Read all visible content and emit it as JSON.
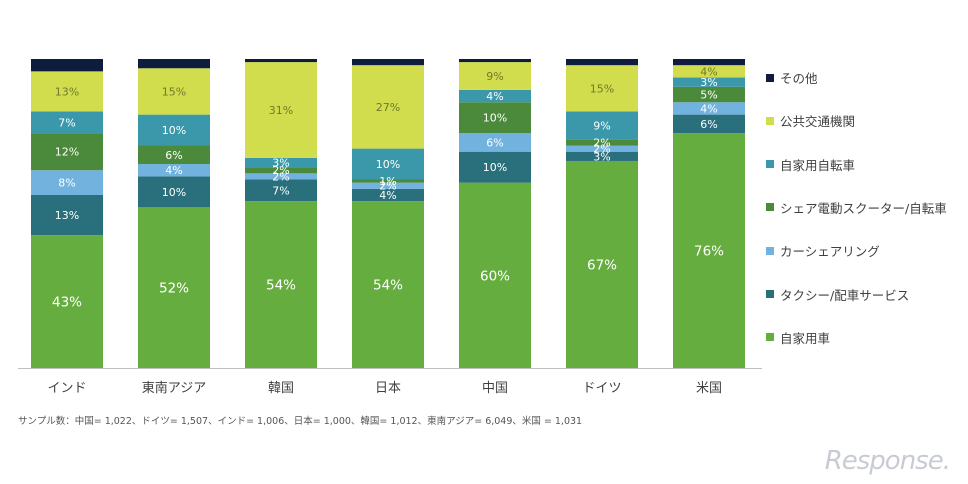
{
  "chart_data": {
    "type": "bar",
    "stacked": true,
    "title": "",
    "xlabel": "",
    "ylabel": "",
    "ylim": [
      0,
      100
    ],
    "grid": false,
    "legend_position": "right",
    "categories": [
      "インド",
      "東南アジア",
      "韓国",
      "日本",
      "中国",
      "ドイツ",
      "米国"
    ],
    "series": [
      {
        "name": "自家用車",
        "color": "#66ad3f",
        "values": [
          43,
          52,
          54,
          54,
          60,
          67,
          76
        ],
        "labels": [
          "43%",
          "52%",
          "54%",
          "54%",
          "60%",
          "67%",
          "76%"
        ]
      },
      {
        "name": "タクシー/配車サービス",
        "color": "#2a6f7c",
        "values": [
          13,
          10,
          7,
          4,
          10,
          3,
          6
        ],
        "labels": [
          "13%",
          "10%",
          "7%",
          "4%",
          "10%",
          "3%",
          "6%"
        ]
      },
      {
        "name": "カーシェアリング",
        "color": "#72b2de",
        "values": [
          8,
          4,
          2,
          2,
          6,
          2,
          4
        ],
        "labels": [
          "8%",
          "4%",
          "2%",
          "2%",
          "6%",
          "2%",
          "4%"
        ]
      },
      {
        "name": "シェア電動スクーター/自転車",
        "color": "#4a8a3a",
        "values": [
          12,
          6,
          2,
          1,
          10,
          2,
          5
        ],
        "labels": [
          "12%",
          "6%",
          "2%",
          "1%",
          "10%",
          "2%",
          "5%"
        ]
      },
      {
        "name": "自家用自転車",
        "color": "#3a98aa",
        "values": [
          7,
          10,
          3,
          10,
          4,
          9,
          3
        ],
        "labels": [
          "7%",
          "10%",
          "3%",
          "10%",
          "4%",
          "9%",
          "3%"
        ]
      },
      {
        "name": "公共交通機関",
        "color": "#d2dd4d",
        "values": [
          13,
          15,
          31,
          27,
          9,
          15,
          4
        ],
        "labels": [
          "13%",
          "15%",
          "31%",
          "27%",
          "9%",
          "15%",
          "4%"
        ]
      },
      {
        "name": "その他",
        "color": "#0e1c3e",
        "values": [
          4,
          3,
          1,
          2,
          1,
          2,
          2
        ],
        "labels": [
          "",
          "",
          "",
          "",
          "",
          "",
          ""
        ]
      }
    ]
  },
  "footnote": "サンプル数：中国= 1,022、ドイツ= 1,507、インド= 1,006、日本= 1,000、韓国= 1,012、東南アジア= 6,049、米国 = 1,031",
  "watermark": "Response."
}
